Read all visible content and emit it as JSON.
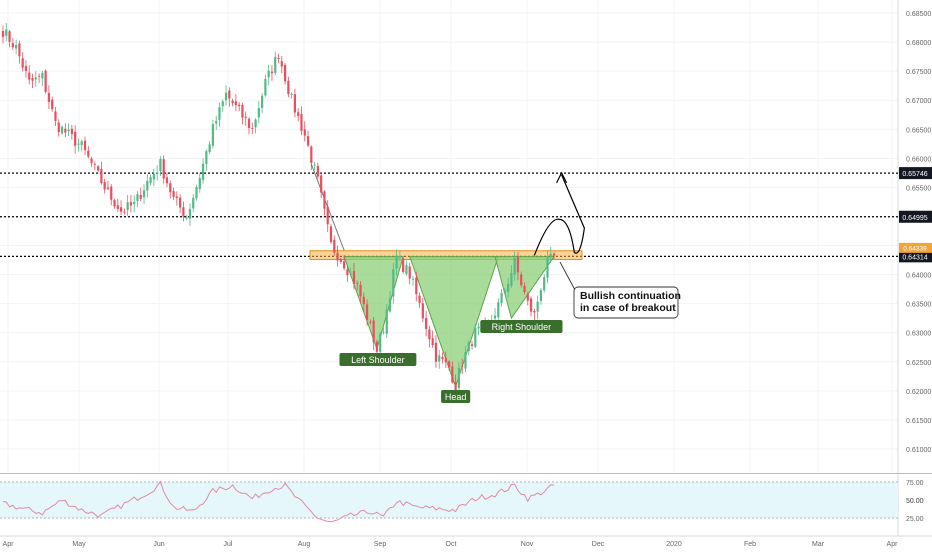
{
  "colors": {
    "up": "#53b987",
    "down": "#eb4d5c",
    "pattern_fill": "#8ccf7a",
    "pattern_stroke": "#5aa64c",
    "resistance_zone": "#f5b041",
    "label_bg": "#3a6e2d",
    "rsi_line": "#e08aa6",
    "rsi_bg": "#e6f7fb",
    "axis_text": "#666666",
    "price_label_bg": "#131722"
  },
  "chart_data": [
    {
      "type": "candlestick",
      "title": "",
      "x_labels": [
        "Apr",
        "May",
        "Jun",
        "Jul",
        "Aug",
        "Sep",
        "Oct",
        "Nov",
        "Dec",
        "2020",
        "Feb",
        "Mar",
        "Apr"
      ],
      "y_ticks": [
        "0.68500",
        "0.68000",
        "0.67500",
        "0.67000",
        "0.66500",
        "0.66000",
        "0.65500",
        "0.65000",
        "0.64500",
        "0.64000",
        "0.63500",
        "0.63000",
        "0.62500",
        "0.62000",
        "0.61500",
        "0.61000"
      ],
      "ylim": [
        0.6045,
        0.6895
      ],
      "series": [
        {
          "name": "close",
          "anchors": [
            [
              0,
              0.682
            ],
            [
              4,
              0.679
            ],
            [
              8,
              0.673
            ],
            [
              12,
              0.674
            ],
            [
              16,
              0.666
            ],
            [
              20,
              0.664
            ],
            [
              24,
              0.662
            ],
            [
              28,
              0.658
            ],
            [
              32,
              0.654
            ],
            [
              36,
              0.651
            ],
            [
              40,
              0.652
            ],
            [
              44,
              0.656
            ],
            [
              48,
              0.659
            ],
            [
              52,
              0.653
            ],
            [
              56,
              0.65
            ],
            [
              60,
              0.657
            ],
            [
              64,
              0.665
            ],
            [
              68,
              0.671
            ],
            [
              72,
              0.668
            ],
            [
              76,
              0.665
            ],
            [
              80,
              0.673
            ],
            [
              84,
              0.678
            ],
            [
              88,
              0.67
            ],
            [
              92,
              0.664
            ],
            [
              96,
              0.656
            ],
            [
              100,
              0.645
            ],
            [
              104,
              0.642
            ],
            [
              108,
              0.638
            ],
            [
              112,
              0.631
            ],
            [
              114,
              0.627
            ],
            [
              116,
              0.631
            ],
            [
              120,
              0.643
            ],
            [
              124,
              0.64
            ],
            [
              128,
              0.633
            ],
            [
              132,
              0.626
            ],
            [
              136,
              0.624
            ],
            [
              138,
              0.621
            ],
            [
              140,
              0.625
            ],
            [
              144,
              0.63
            ],
            [
              148,
              0.631
            ],
            [
              152,
              0.636
            ],
            [
              156,
              0.642
            ],
            [
              160,
              0.635
            ],
            [
              162,
              0.633
            ],
            [
              164,
              0.638
            ],
            [
              166,
              0.642
            ],
            [
              168,
              0.643
            ]
          ]
        }
      ],
      "horizontal_levels": [
        {
          "value": 0.65746,
          "label": "0.65746"
        },
        {
          "value": 0.64995,
          "label": "0.64995"
        },
        {
          "value": 0.64314,
          "label": "0.64314"
        }
      ],
      "last_price_label": "0.64339",
      "resistance_zone": [
        0.6426,
        0.6441
      ],
      "pattern": {
        "type": "inverse head and shoulders",
        "points": {
          "left_shoulder": [
            114,
            0.6272
          ],
          "head": [
            138,
            0.6207
          ],
          "right_shoulder": [
            155,
            0.6325
          ]
        }
      },
      "projection": {
        "from": [
          162,
          0.6433
        ],
        "to": [
          170,
          0.6575
        ]
      },
      "annotations": {
        "left_shoulder": "Left Shoulder",
        "head": "Head",
        "right_shoulder": "Right Shoulder",
        "callout": [
          "Bullish continuation",
          "in case of breakout"
        ]
      }
    },
    {
      "type": "line",
      "title": "",
      "y_ticks": [
        "75.00",
        "50.00",
        "25.00"
      ],
      "ylim": [
        10,
        95
      ],
      "band": [
        25,
        75
      ],
      "series": [
        {
          "name": "rsi",
          "anchors": [
            [
              0,
              45
            ],
            [
              6,
              38
            ],
            [
              12,
              32
            ],
            [
              18,
              50
            ],
            [
              24,
              36
            ],
            [
              30,
              28
            ],
            [
              36,
              42
            ],
            [
              44,
              60
            ],
            [
              48,
              72
            ],
            [
              52,
              40
            ],
            [
              58,
              34
            ],
            [
              64,
              62
            ],
            [
              70,
              70
            ],
            [
              76,
              52
            ],
            [
              82,
              66
            ],
            [
              86,
              70
            ],
            [
              90,
              50
            ],
            [
              96,
              25
            ],
            [
              100,
              18
            ],
            [
              106,
              28
            ],
            [
              112,
              34
            ],
            [
              116,
              26
            ],
            [
              120,
              48
            ],
            [
              126,
              40
            ],
            [
              132,
              38
            ],
            [
              138,
              36
            ],
            [
              144,
              52
            ],
            [
              150,
              58
            ],
            [
              156,
              70
            ],
            [
              160,
              52
            ],
            [
              164,
              60
            ],
            [
              168,
              70
            ]
          ]
        }
      ]
    }
  ]
}
